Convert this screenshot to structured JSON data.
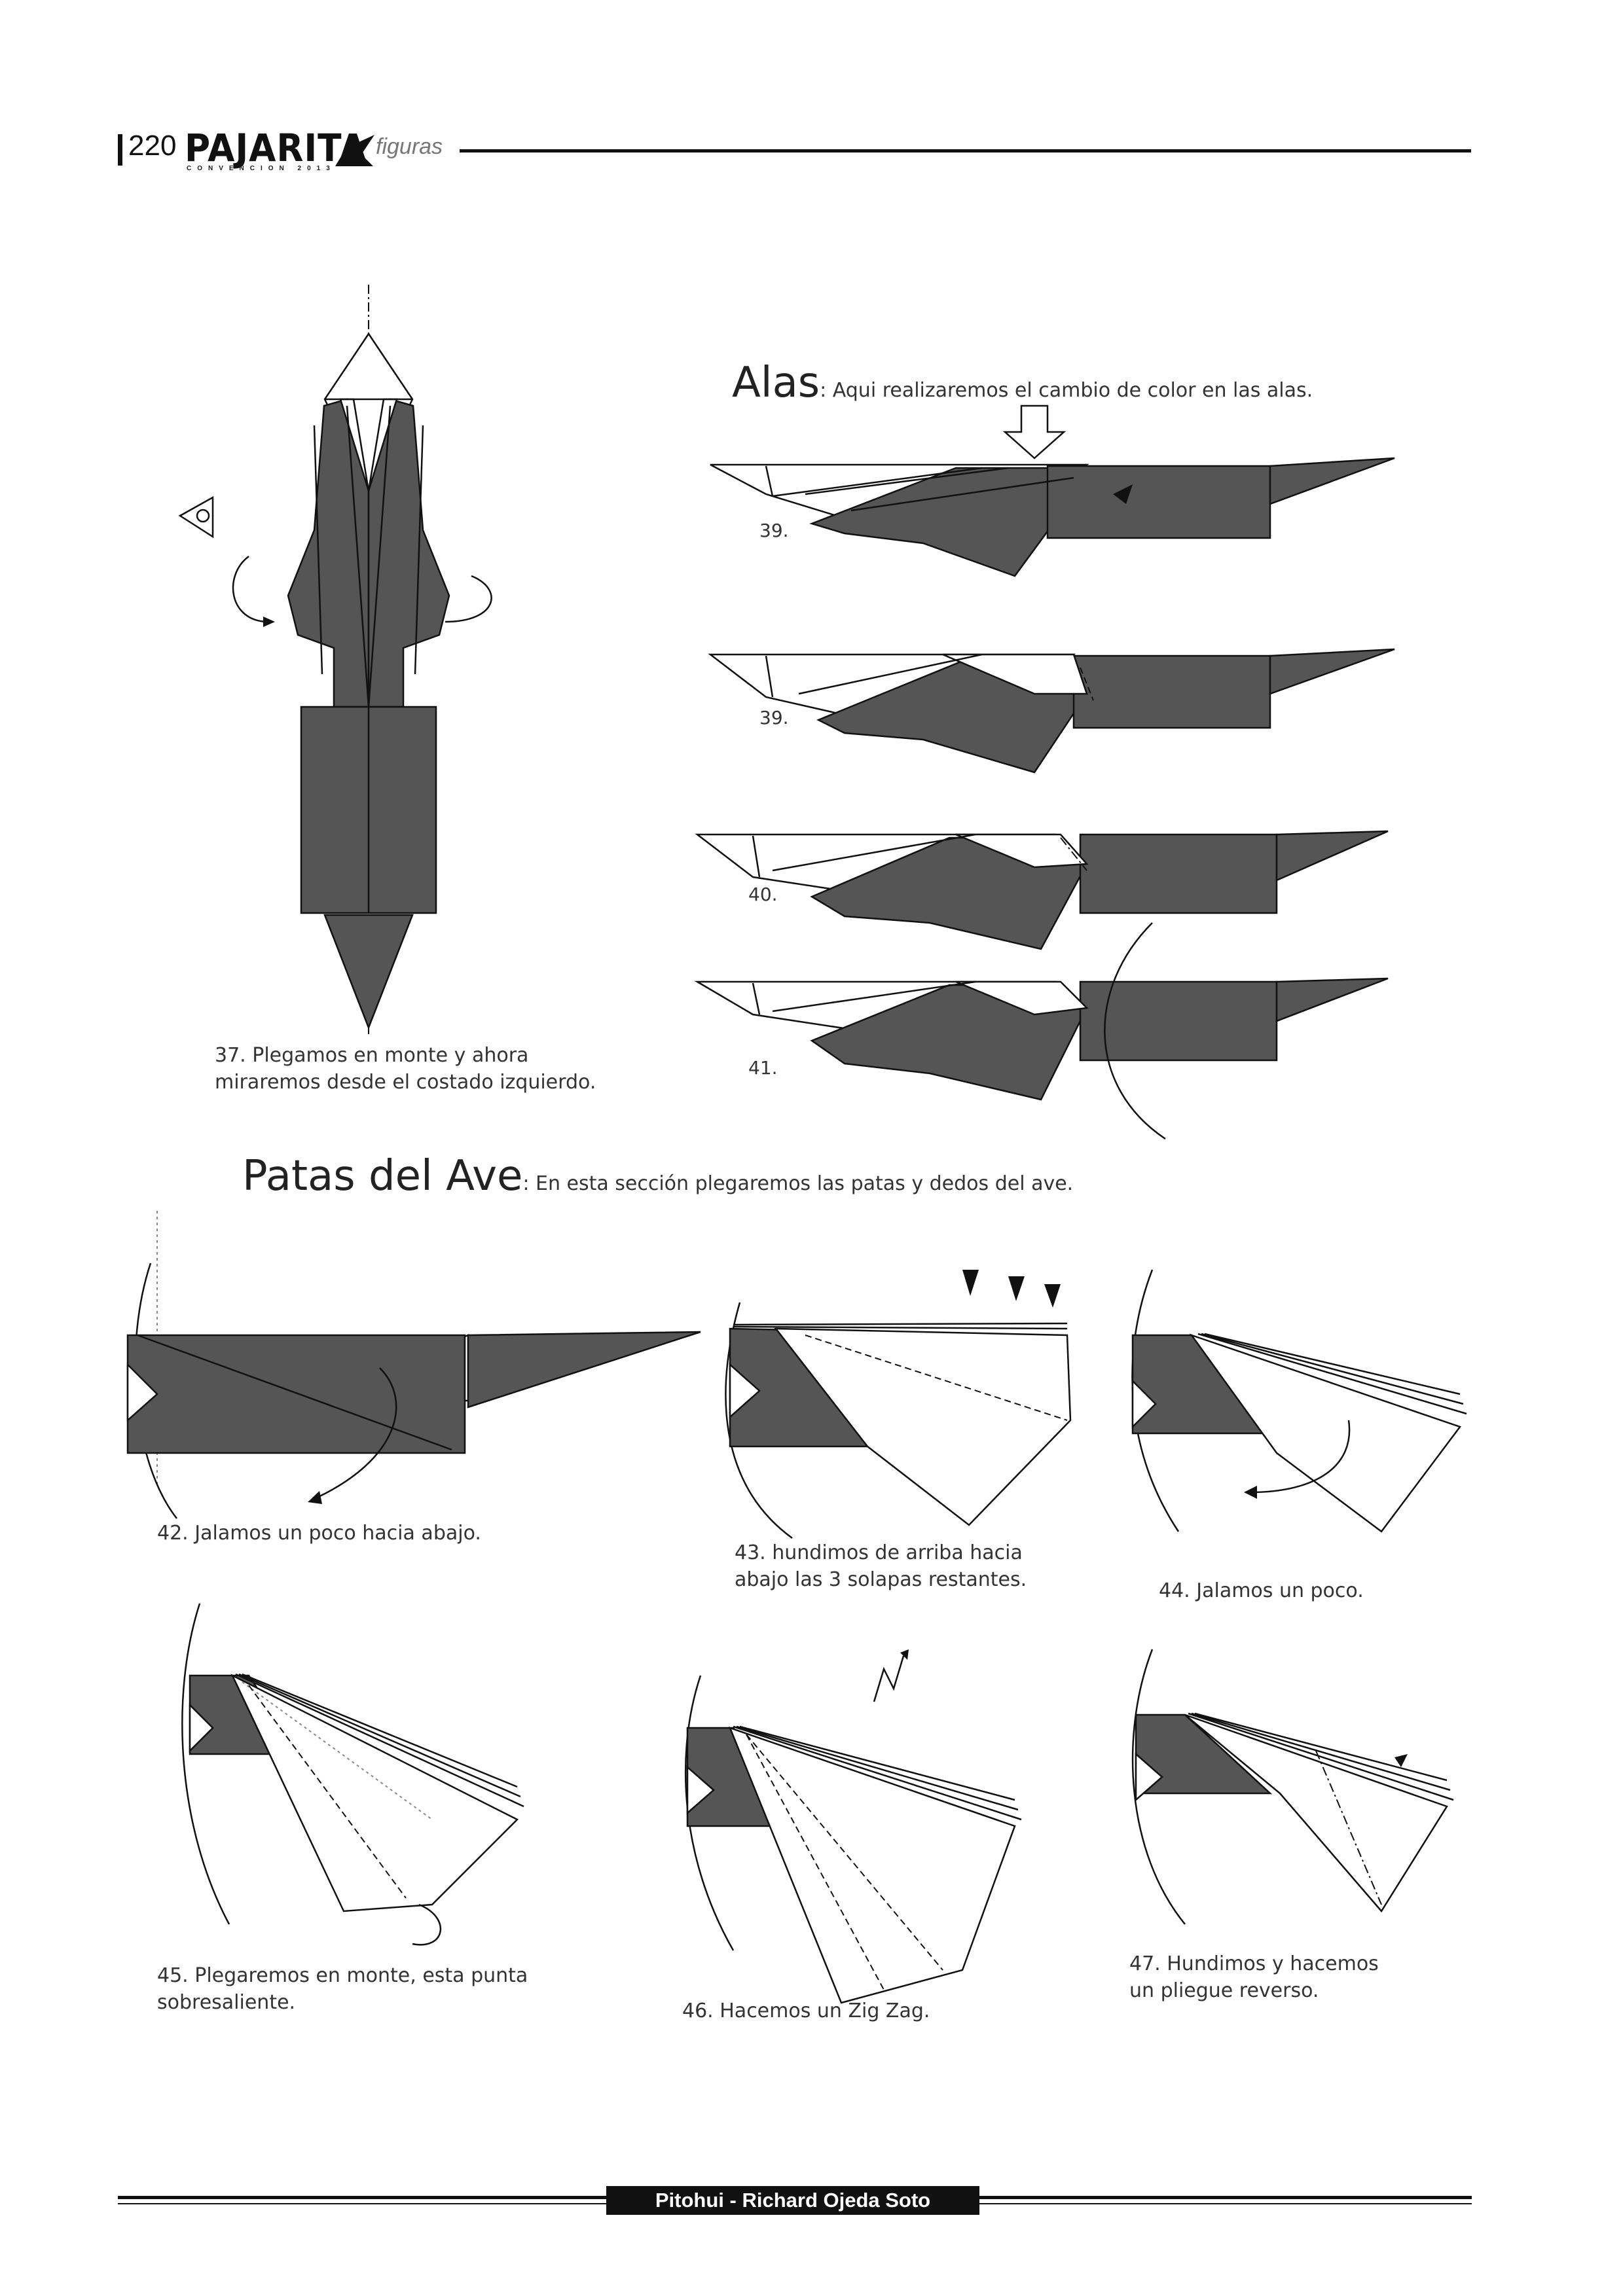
{
  "header": {
    "page_number": "220",
    "brand": "PAJARITA",
    "brand_sub": "CONVENCION 2013",
    "section": "figuras"
  },
  "alas": {
    "title": "Alas",
    "description": ": Aqui realizaremos el cambio de color en las alas."
  },
  "patas": {
    "title": "Patas del Ave",
    "description": ": En esta sección plegaremos las patas y dedos del ave."
  },
  "steps": {
    "s37": {
      "line1": "37. Plegamos en monte y ahora",
      "line2": "miraremos desde el costado izquierdo."
    },
    "s39a": "39.",
    "s39b": "39.",
    "s40": "40.",
    "s41": "41.",
    "s42": "42. Jalamos un poco hacia abajo.",
    "s43": {
      "line1": "43. hundimos de arriba hacia",
      "line2": "abajo las 3 solapas restantes."
    },
    "s44": "44. Jalamos un poco.",
    "s45": {
      "line1": "45. Plegaremos en monte, esta punta",
      "line2": "sobresaliente."
    },
    "s46": "46. Hacemos un Zig Zag.",
    "s47": {
      "line1": "47. Hundimos y hacemos",
      "line2": "un pliegue reverso."
    }
  },
  "footer": {
    "credit": "Pitohui - Richard Ojeda Soto"
  },
  "colors": {
    "paper_dark": "#555555",
    "paper_light": "#ffffff",
    "ink": "#111111"
  }
}
